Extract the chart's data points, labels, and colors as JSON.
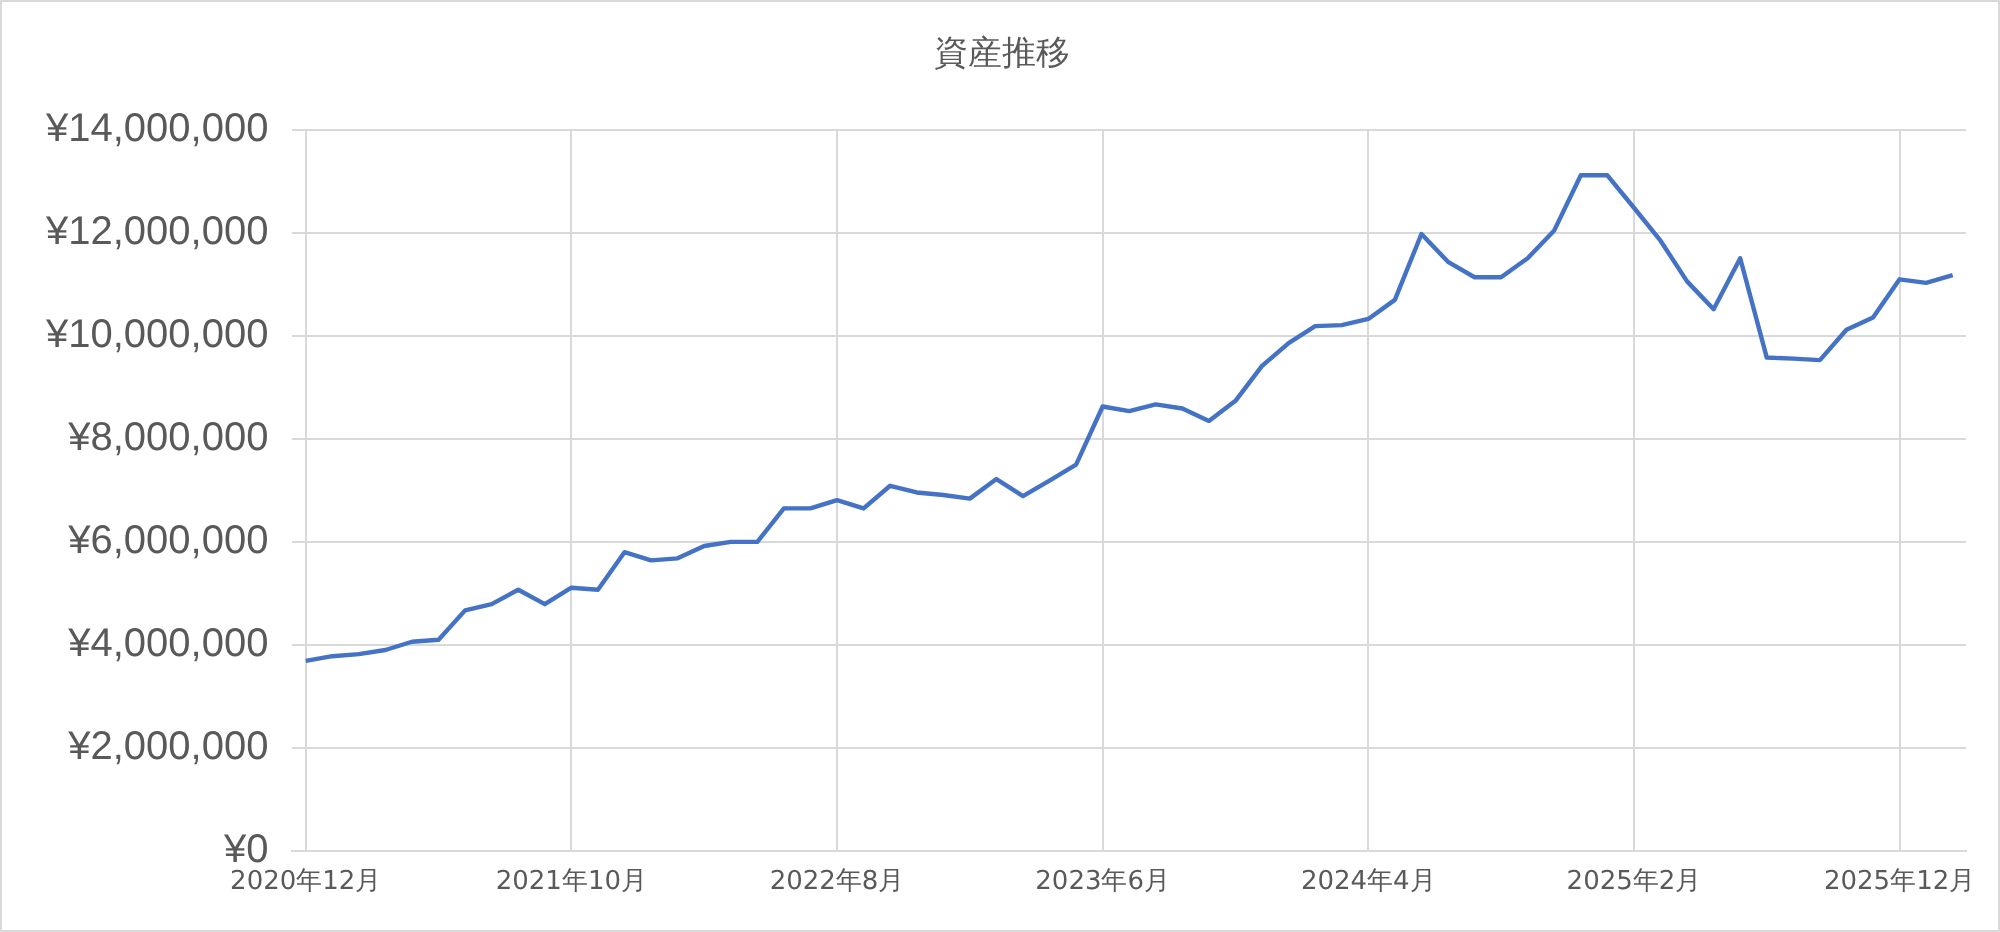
{
  "chart_data": {
    "type": "line",
    "title": "資産推移",
    "categories": [
      "2020年12月",
      null,
      null,
      null,
      null,
      null,
      null,
      null,
      null,
      null,
      "2021年10月",
      null,
      null,
      null,
      null,
      null,
      null,
      null,
      null,
      null,
      "2022年8月",
      null,
      null,
      null,
      null,
      null,
      null,
      null,
      null,
      null,
      "2023年6月",
      null,
      null,
      null,
      null,
      null,
      null,
      null,
      null,
      null,
      "2024年4月",
      null,
      null,
      null,
      null,
      null,
      null,
      null,
      null,
      null,
      "2025年2月",
      null,
      null,
      null,
      null,
      null,
      null,
      null,
      null,
      null,
      "2025年12月",
      null,
      null
    ],
    "series": [
      {
        "color": "#4472c4",
        "values": [
          3690000,
          3780000,
          3820000,
          3900000,
          4060000,
          4100000,
          4670000,
          4790000,
          5070000,
          4790000,
          5110000,
          5070000,
          5800000,
          5640000,
          5680000,
          5920000,
          6000000,
          6000000,
          6650000,
          6650000,
          6810000,
          6650000,
          7090000,
          6960000,
          6910000,
          6840000,
          7220000,
          6890000,
          7190000,
          7500000,
          8630000,
          8540000,
          8670000,
          8590000,
          8350000,
          8740000,
          9420000,
          9860000,
          10190000,
          10210000,
          10330000,
          10700000,
          11980000,
          11440000,
          11140000,
          11140000,
          11510000,
          12050000,
          13120000,
          13120000,
          12490000,
          11850000,
          11060000,
          10520000,
          11510000,
          9580000,
          9560000,
          9530000,
          10120000,
          10360000,
          11100000,
          11030000,
          11180000
        ]
      }
    ],
    "ylim": [
      0,
      14000000
    ],
    "yticks": [
      {
        "value": 0,
        "label": "¥0"
      },
      {
        "value": 2000000,
        "label": "¥2,000,000"
      },
      {
        "value": 4000000,
        "label": "¥4,000,000"
      },
      {
        "value": 6000000,
        "label": "¥6,000,000"
      },
      {
        "value": 8000000,
        "label": "¥8,000,000"
      },
      {
        "value": 10000000,
        "label": "¥10,000,000"
      },
      {
        "value": 12000000,
        "label": "¥12,000,000"
      },
      {
        "value": 14000000,
        "label": "¥14,000,000"
      }
    ],
    "grid": true,
    "legend": false,
    "marker": "none",
    "line_style": "solid"
  }
}
